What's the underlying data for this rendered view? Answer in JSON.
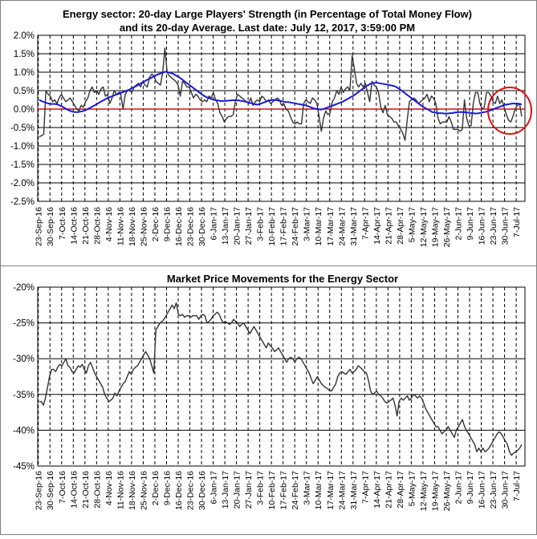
{
  "chart_data": [
    {
      "type": "line",
      "title": "Energy sector: 20-day Large Players' Strength (in Percentage of Total Money Flow)",
      "subtitle": "and its 20-day Average. Last date: July 12, 2017, 3:59:00 PM",
      "xlabel": "",
      "ylabel": "",
      "ylim": [
        -0.025,
        0.02
      ],
      "ytick_labels": [
        "2.0%",
        "1.5%",
        "1.0%",
        "0.5%",
        "0.0%",
        "-0.5%",
        "-1.0%",
        "-1.5%",
        "-2.0%",
        "-2.5%"
      ],
      "xtick_labels": [
        "23-Sep-16",
        "30-Sep-16",
        "7-Oct-16",
        "14-Oct-16",
        "21-Oct-16",
        "28-Oct-16",
        "4-Nov-16",
        "11-Nov-16",
        "18-Nov-16",
        "25-Nov-16",
        "2-Dec-16",
        "9-Dec-16",
        "16-Dec-16",
        "23-Dec-16",
        "30-Dec-16",
        "6-Jan-17",
        "13-Jan-17",
        "20-Jan-17",
        "27-Jan-17",
        "3-Feb-17",
        "10-Feb-17",
        "17-Feb-17",
        "24-Feb-17",
        "3-Mar-17",
        "10-Mar-17",
        "17-Mar-17",
        "24-Mar-17",
        "31-Mar-17",
        "7-Apr-17",
        "14-Apr-17",
        "21-Apr-17",
        "28-Apr-17",
        "5-May-17",
        "12-May-17",
        "19-May-17",
        "26-May-17",
        "2-Jun-17",
        "9-Jun-17",
        "16-Jun-17",
        "23-Jun-17",
        "30-Jun-17",
        "7-Jul-17"
      ],
      "grid": true,
      "annotation": "red circle highlighting the latest readings (early July 2017)",
      "series": [
        {
          "name": "",
          "color": "#333333",
          "values": [
            -0.0075,
            -0.0072,
            -0.0068,
            0.005,
            0.004,
            0.0035,
            0.002,
            0.0025,
            0.0015,
            0.003,
            0.004,
            0.003,
            0.002,
            0.0025,
            0.003,
            0.002,
            0.001,
            0.0,
            -0.0005,
            0.001,
            0.0005,
            0.002,
            0.003,
            0.005,
            0.006,
            0.0045,
            0.005,
            0.004,
            0.0055,
            0.006,
            0.0035,
            0.004,
            0.0015,
            0.003,
            0.005,
            0.004,
            0.0045,
            0.004,
            0.0,
            0.004,
            0.005,
            0.005,
            0.0045,
            0.006,
            0.0065,
            0.007,
            0.006,
            0.0075,
            0.0065,
            0.006,
            0.0085,
            0.0095,
            0.009,
            0.0075,
            0.007,
            0.0065,
            0.01,
            0.0165,
            0.01,
            0.009,
            0.0085,
            0.008,
            0.0075,
            0.0065,
            0.0035,
            0.0075,
            0.007,
            0.006,
            0.006,
            0.0045,
            0.003,
            0.004,
            0.0035,
            0.0025,
            0.002,
            0.0025,
            0.002,
            0.0035,
            0.003,
            0.0045,
            0.0025,
            0.0015,
            -0.001,
            -0.002,
            -0.0035,
            -0.0025,
            -0.002,
            -0.002,
            -0.0015,
            0.002,
            0.004,
            0.0035,
            0.003,
            0.0025,
            0.002,
            0.0015,
            0.003,
            0.001,
            0.002,
            0.0025,
            0.002,
            0.0035,
            0.003,
            0.002,
            0.0025,
            0.0015,
            0.002,
            0.0025,
            0.003,
            0.0025,
            0.001,
            0.0015,
            0.0,
            -0.0005,
            -0.002,
            -0.0035,
            -0.004,
            -0.0035,
            -0.004,
            -0.004,
            0.0015,
            0.0025,
            0.002,
            0.0015,
            0.003,
            0.0025,
            0.0015,
            -0.002,
            -0.006,
            -0.0025,
            -0.0005,
            -0.0015,
            -0.001,
            0.002,
            0.003,
            0.005,
            0.004,
            0.006,
            0.0045,
            0.0055,
            0.006,
            0.005,
            0.0145,
            0.011,
            0.007,
            0.006,
            0.007,
            0.006,
            0.007,
            0.0045,
            0.002,
            0.0075,
            0.0065,
            0.006,
            0.0045,
            0.0005,
            -0.001,
            0.001,
            -0.0015,
            -0.002,
            -0.0025,
            -0.0035,
            -0.0035,
            -0.0045,
            -0.0055,
            -0.0065,
            -0.0085,
            -0.003,
            0.002,
            0.0025,
            0.003,
            0.0025,
            0.0015,
            0.002,
            0.0025,
            0.003,
            0.004,
            0.002,
            0.0035,
            0.003,
            0.0015,
            -0.0025,
            -0.004,
            -0.0035,
            -0.0035,
            -0.0035,
            -0.002,
            -0.0035,
            -0.0055,
            -0.0055,
            -0.0055,
            -0.006,
            -0.0055,
            0.0025,
            -0.0025,
            -0.0045,
            -0.0045,
            0.0015,
            0.0045,
            0.0045,
            0.0015,
            0.0,
            0.0005,
            0.0045,
            0.0045,
            0.0035,
            0.002,
            0.0015,
            0.0035,
            0.0015,
            0.0025,
            0.0005,
            -0.0015,
            -0.003,
            -0.0035,
            -0.002,
            0.0,
            0.001,
            0.0015,
            -0.002
          ]
        },
        {
          "name": "",
          "color": "#1a1ad6",
          "values": [
            0.0025,
            0.0022,
            0.002,
            0.0018,
            0.0016,
            0.0015,
            0.0014,
            0.0014,
            0.0014,
            0.0013,
            0.0011,
            0.0009,
            0.0006,
            0.0003,
            0.0,
            -0.0003,
            -0.0005,
            -0.0007,
            -0.0008,
            -0.0008,
            -0.0008,
            -0.0007,
            -0.0006,
            -0.0004,
            -0.0002,
            0.0,
            0.0003,
            0.0006,
            0.0009,
            0.0012,
            0.0015,
            0.0018,
            0.0021,
            0.0024,
            0.0027,
            0.003,
            0.0032,
            0.0034,
            0.0036,
            0.0038,
            0.004,
            0.0042,
            0.0044,
            0.0046,
            0.0048,
            0.005,
            0.0052,
            0.0055,
            0.0058,
            0.006,
            0.0063,
            0.0066,
            0.0069,
            0.0072,
            0.0075,
            0.0078,
            0.0081,
            0.0083,
            0.0086,
            0.0089,
            0.0092,
            0.0094,
            0.0096,
            0.0098,
            0.01,
            0.0101,
            0.01,
            0.0099,
            0.0097,
            0.0095,
            0.0092,
            0.0089,
            0.0086,
            0.0082,
            0.0078,
            0.0074,
            0.007,
            0.0066,
            0.0062,
            0.0058,
            0.0054,
            0.005,
            0.0046,
            0.0042,
            0.0038,
            0.0035,
            0.0032,
            0.003,
            0.0028,
            0.0026,
            0.0025,
            0.0024,
            0.0023,
            0.0022,
            0.0022,
            0.0022,
            0.0022,
            0.0023,
            0.0023,
            0.0024,
            0.0024,
            0.0024,
            0.0024,
            0.0023,
            0.0022,
            0.0021,
            0.002,
            0.0019,
            0.0017,
            0.0016,
            0.0014,
            0.0013,
            0.0012,
            0.0013,
            0.0015,
            0.0017,
            0.0019,
            0.0021,
            0.0023,
            0.0024,
            0.0025,
            0.0025,
            0.0024,
            0.0023,
            0.0022,
            0.0021,
            0.002,
            0.0019,
            0.0019,
            0.0018,
            0.0017,
            0.0016,
            0.0015,
            0.0014,
            0.0013,
            0.0012,
            0.0011,
            0.001,
            0.0008,
            0.0006,
            0.0004,
            0.0002,
            0.0001,
            0.0,
            -0.0001,
            -0.0001,
            0.0,
            0.0002,
            0.0004,
            0.0006,
            0.0008,
            0.001,
            0.0012,
            0.0014,
            0.0016,
            0.0018,
            0.002,
            0.0023,
            0.0026,
            0.0029,
            0.0032,
            0.0035,
            0.0038,
            0.0042,
            0.0046,
            0.005,
            0.0054,
            0.0058,
            0.0062,
            0.0065,
            0.0068,
            0.007,
            0.0071,
            0.0071,
            0.0071,
            0.007,
            0.0069,
            0.0068,
            0.0067,
            0.0066,
            0.0065,
            0.0064,
            0.0063,
            0.0061,
            0.0058,
            0.0055,
            0.0051,
            0.0047,
            0.0043,
            0.0039,
            0.0035,
            0.0031,
            0.0027,
            0.0023,
            0.0019,
            0.0015,
            0.0011,
            0.0007,
            0.0004,
            0.0001,
            -0.0002,
            -0.0005,
            -0.0008,
            -0.0009,
            -0.001,
            -0.0011,
            -0.0011,
            -0.0011,
            -0.0012,
            -0.0012,
            -0.0012,
            -0.0011,
            -0.0011,
            -0.001,
            -0.0009,
            -0.0009,
            -0.0008,
            -0.0008,
            -0.0008,
            -0.0009,
            -0.0009,
            -0.001,
            -0.0011,
            -0.0011,
            -0.0012,
            -0.0012,
            -0.0011,
            -0.001,
            -0.0009,
            -0.0008,
            -0.0007,
            -0.0005,
            -0.0003,
            -0.0001,
            0.0001,
            0.0003,
            0.0005,
            0.0007,
            0.0009,
            0.0011,
            0.0012,
            0.0013,
            0.0014,
            0.0015,
            0.0015,
            0.0015,
            0.0015,
            0.0014,
            0.0013
          ]
        }
      ]
    },
    {
      "type": "line",
      "title": "Market Price Movements for the Energy Sector",
      "xlabel": "",
      "ylabel": "",
      "ylim": [
        -0.45,
        -0.2
      ],
      "ytick_labels": [
        "-20%",
        "-25%",
        "-30%",
        "-35%",
        "-40%",
        "-45%"
      ],
      "xtick_labels": [
        "23-Sep-16",
        "30-Sep-16",
        "7-Oct-16",
        "14-Oct-16",
        "21-Oct-16",
        "28-Oct-16",
        "4-Nov-16",
        "11-Nov-16",
        "18-Nov-16",
        "25-Nov-16",
        "2-Dec-16",
        "9-Dec-16",
        "16-Dec-16",
        "23-Dec-16",
        "30-Dec-16",
        "6-Jan-17",
        "13-Jan-17",
        "20-Jan-17",
        "27-Jan-17",
        "3-Feb-17",
        "10-Feb-17",
        "17-Feb-17",
        "24-Feb-17",
        "3-Mar-17",
        "10-Mar-17",
        "17-Mar-17",
        "24-Mar-17",
        "31-Mar-17",
        "7-Apr-17",
        "14-Apr-17",
        "21-Apr-17",
        "28-Apr-17",
        "5-May-17",
        "12-May-17",
        "19-May-17",
        "26-May-17",
        "2-Jun-17",
        "9-Jun-17",
        "16-Jun-17",
        "23-Jun-17",
        "30-Jun-17",
        "7-Jul-17"
      ],
      "grid": true,
      "series": [
        {
          "name": "",
          "color": "#333333",
          "values": [
            -0.36,
            -0.36,
            -0.365,
            -0.355,
            -0.34,
            -0.325,
            -0.315,
            -0.315,
            -0.318,
            -0.312,
            -0.308,
            -0.31,
            -0.305,
            -0.3,
            -0.31,
            -0.312,
            -0.318,
            -0.32,
            -0.315,
            -0.31,
            -0.312,
            -0.308,
            -0.315,
            -0.32,
            -0.31,
            -0.305,
            -0.312,
            -0.32,
            -0.325,
            -0.33,
            -0.335,
            -0.34,
            -0.35,
            -0.355,
            -0.36,
            -0.358,
            -0.355,
            -0.348,
            -0.352,
            -0.345,
            -0.34,
            -0.335,
            -0.332,
            -0.325,
            -0.318,
            -0.322,
            -0.315,
            -0.312,
            -0.31,
            -0.305,
            -0.3,
            -0.295,
            -0.29,
            -0.295,
            -0.3,
            -0.31,
            -0.32,
            -0.26,
            -0.255,
            -0.25,
            -0.248,
            -0.245,
            -0.24,
            -0.235,
            -0.23,
            -0.225,
            -0.23,
            -0.222,
            -0.238,
            -0.24,
            -0.238,
            -0.242,
            -0.24,
            -0.24,
            -0.242,
            -0.24,
            -0.24,
            -0.24,
            -0.245,
            -0.24,
            -0.238,
            -0.24,
            -0.25,
            -0.248,
            -0.245,
            -0.24,
            -0.238,
            -0.235,
            -0.238,
            -0.245,
            -0.25,
            -0.248,
            -0.25,
            -0.252,
            -0.25,
            -0.245,
            -0.248,
            -0.25,
            -0.255,
            -0.252,
            -0.25,
            -0.255,
            -0.26,
            -0.265,
            -0.26,
            -0.255,
            -0.26,
            -0.265,
            -0.27,
            -0.275,
            -0.28,
            -0.285,
            -0.278,
            -0.282,
            -0.285,
            -0.29,
            -0.288,
            -0.285,
            -0.29,
            -0.295,
            -0.3,
            -0.305,
            -0.3,
            -0.298,
            -0.3,
            -0.305,
            -0.3,
            -0.298,
            -0.3,
            -0.305,
            -0.31,
            -0.315,
            -0.32,
            -0.328,
            -0.335,
            -0.33,
            -0.325,
            -0.33,
            -0.335,
            -0.338,
            -0.34,
            -0.342,
            -0.345,
            -0.345,
            -0.34,
            -0.335,
            -0.325,
            -0.32,
            -0.318,
            -0.32,
            -0.322,
            -0.318,
            -0.315,
            -0.32,
            -0.318,
            -0.315,
            -0.31,
            -0.312,
            -0.315,
            -0.318,
            -0.32,
            -0.33,
            -0.345,
            -0.35,
            -0.348,
            -0.345,
            -0.35,
            -0.352,
            -0.355,
            -0.36,
            -0.362,
            -0.36,
            -0.358,
            -0.355,
            -0.365,
            -0.38,
            -0.36,
            -0.355,
            -0.358,
            -0.355,
            -0.352,
            -0.358,
            -0.355,
            -0.35,
            -0.352,
            -0.355,
            -0.352,
            -0.355,
            -0.362,
            -0.37,
            -0.375,
            -0.38,
            -0.385,
            -0.39,
            -0.395,
            -0.395,
            -0.4,
            -0.405,
            -0.402,
            -0.4,
            -0.395,
            -0.4,
            -0.405,
            -0.41,
            -0.4,
            -0.395,
            -0.39,
            -0.385,
            -0.395,
            -0.4,
            -0.405,
            -0.41,
            -0.415,
            -0.42,
            -0.43,
            -0.425,
            -0.43,
            -0.425,
            -0.43,
            -0.428,
            -0.425,
            -0.42,
            -0.415,
            -0.41,
            -0.405,
            -0.402,
            -0.405,
            -0.41,
            -0.415,
            -0.42,
            -0.43,
            -0.435,
            -0.432,
            -0.43,
            -0.428,
            -0.425,
            -0.42
          ]
        }
      ]
    }
  ]
}
